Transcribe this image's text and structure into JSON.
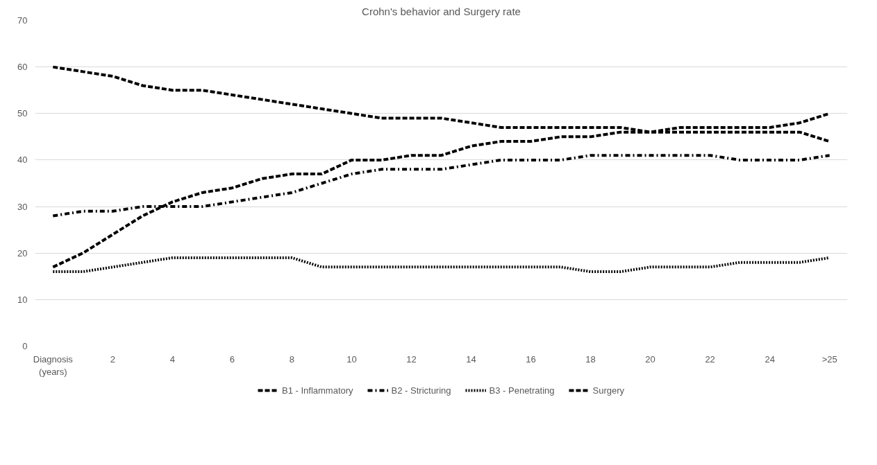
{
  "chart_data": {
    "type": "line",
    "title": "Crohn's behavior and Surgery rate",
    "categories": [
      "Diagnosis\n(years)",
      null,
      "2",
      null,
      "4",
      null,
      "6",
      null,
      "8",
      null,
      "10",
      null,
      "12",
      null,
      "14",
      null,
      "16",
      null,
      "18",
      null,
      "20",
      null,
      "22",
      null,
      "24",
      null,
      ">25"
    ],
    "series": [
      {
        "name": "B1 - Inflammatory",
        "color": "#000000",
        "line_style": "dashed",
        "values": [
          60,
          59,
          58,
          56,
          55,
          55,
          54,
          53,
          52,
          51,
          50,
          49,
          49,
          49,
          48,
          47,
          47,
          47,
          47,
          47,
          46,
          46,
          46,
          46,
          46,
          46,
          44
        ]
      },
      {
        "name": "B2 - Stricturing",
        "color": "#000000",
        "line_style": "dashdot",
        "values": [
          28,
          29,
          29,
          30,
          30,
          30,
          31,
          32,
          33,
          35,
          37,
          38,
          38,
          38,
          39,
          40,
          40,
          40,
          41,
          41,
          41,
          41,
          41,
          40,
          40,
          40,
          41
        ]
      },
      {
        "name": "B3 - Penetrating",
        "color": "#000000",
        "line_style": "dotted",
        "values": [
          16,
          16,
          17,
          18,
          19,
          19,
          19,
          19,
          19,
          17,
          17,
          17,
          17,
          17,
          17,
          17,
          17,
          17,
          16,
          16,
          17,
          17,
          17,
          18,
          18,
          18,
          19
        ]
      },
      {
        "name": "Surgery",
        "color": "#000000",
        "line_style": "dashed",
        "values": [
          17,
          20,
          24,
          28,
          31,
          33,
          34,
          36,
          37,
          37,
          40,
          40,
          41,
          41,
          43,
          44,
          44,
          45,
          45,
          46,
          46,
          47,
          47,
          47,
          47,
          48,
          50
        ]
      }
    ],
    "ylim": [
      0,
      70
    ],
    "yticks": [
      0,
      10,
      20,
      30,
      40,
      50,
      60,
      70
    ],
    "grid": "y",
    "legend": "bottom"
  }
}
